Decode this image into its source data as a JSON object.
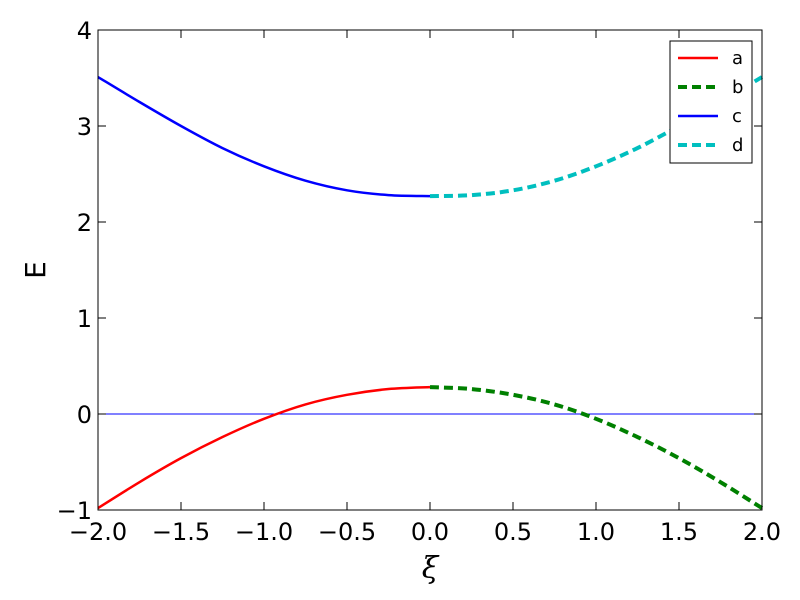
{
  "chart_data": {
    "type": "line",
    "title": "",
    "xlabel": "ξ",
    "ylabel": "E",
    "xlim": [
      -2.0,
      2.0
    ],
    "ylim": [
      -1,
      4
    ],
    "x_ticks": [
      -2.0,
      -1.5,
      -1.0,
      -0.5,
      0.0,
      0.5,
      1.0,
      1.5,
      2.0
    ],
    "x_tick_labels": [
      "−2.0",
      "−1.5",
      "−1.0",
      "−0.5",
      "0.0",
      "0.5",
      "1.0",
      "1.5",
      "2.0"
    ],
    "y_ticks": [
      -1,
      0,
      1,
      2,
      3,
      4
    ],
    "y_tick_labels": [
      "−1",
      "0",
      "1",
      "2",
      "3",
      "4"
    ],
    "grid": false,
    "legend_position": "top-right",
    "reference_line": {
      "y": 0,
      "color": "#0000ff"
    },
    "series": [
      {
        "name": "a",
        "color": "#ff0000",
        "style": "solid",
        "x": [
          -2.0,
          -1.75,
          -1.5,
          -1.25,
          -1.0,
          -0.75,
          -0.5,
          -0.25,
          0.0
        ],
        "y": [
          -0.98,
          -0.71,
          -0.46,
          -0.24,
          -0.05,
          0.1,
          0.2,
          0.26,
          0.28
        ]
      },
      {
        "name": "b",
        "color": "#008000",
        "style": "dashed",
        "x": [
          0.0,
          0.25,
          0.5,
          0.75,
          1.0,
          1.25,
          1.5,
          1.75,
          2.0
        ],
        "y": [
          0.28,
          0.26,
          0.2,
          0.1,
          -0.05,
          -0.24,
          -0.46,
          -0.71,
          -0.98
        ]
      },
      {
        "name": "c",
        "color": "#0000ff",
        "style": "solid",
        "x": [
          -2.0,
          -1.75,
          -1.5,
          -1.25,
          -1.0,
          -0.75,
          -0.5,
          -0.25,
          0.0
        ],
        "y": [
          3.51,
          3.25,
          3.0,
          2.77,
          2.58,
          2.43,
          2.33,
          2.28,
          2.27
        ]
      },
      {
        "name": "d",
        "color": "#00bfbf",
        "style": "dashed",
        "x": [
          0.0,
          0.25,
          0.5,
          0.75,
          1.0,
          1.25,
          1.5,
          1.75,
          2.0
        ],
        "y": [
          2.27,
          2.28,
          2.33,
          2.43,
          2.58,
          2.77,
          3.0,
          3.25,
          3.51
        ]
      }
    ]
  }
}
